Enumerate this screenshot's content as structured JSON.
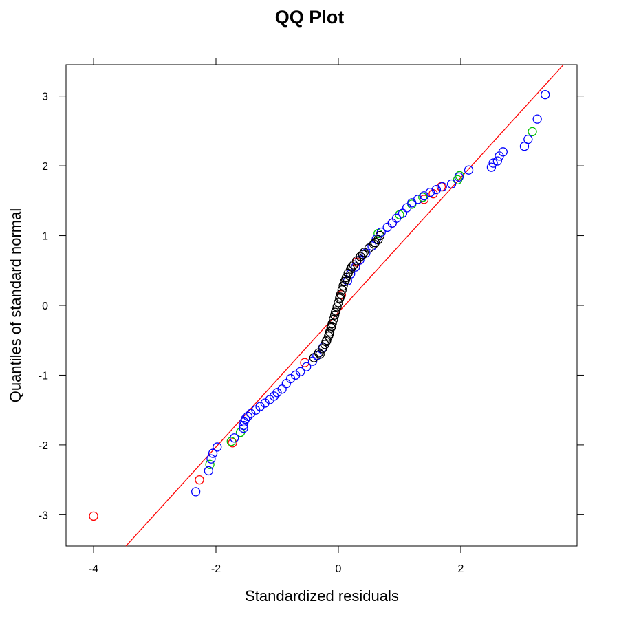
{
  "chart_data": {
    "type": "scatter",
    "title": "QQ Plot",
    "xlabel": "Standardized residuals",
    "ylabel": "Quantiles of standard normal",
    "xlim": [
      -4.45,
      3.9
    ],
    "ylim": [
      -3.45,
      3.45
    ],
    "x_ticks": [
      -4,
      -2,
      0,
      2
    ],
    "x_tick_labels": [
      "-4",
      "-2",
      "0",
      "2"
    ],
    "y_ticks": [
      -3,
      -2,
      -1,
      0,
      1,
      2,
      3
    ],
    "y_tick_labels": [
      "-3",
      "-2",
      "-1",
      "0",
      "1",
      "2",
      "3"
    ],
    "grid": false,
    "reference_line": {
      "intercept": -0.1,
      "slope": 0.965,
      "color": "#ff0000"
    },
    "colors": {
      "red": "#ff0000",
      "green": "#00c000",
      "blue": "#0000ff",
      "black": "#000000"
    },
    "series": [
      {
        "color": "red",
        "points": [
          [
            -4.0,
            -3.02
          ],
          [
            -2.27,
            -2.5
          ],
          [
            -1.73,
            -1.97
          ],
          [
            -0.55,
            -0.82
          ],
          [
            0.88,
            1.18
          ],
          [
            1.55,
            1.6
          ],
          [
            1.68,
            1.7
          ],
          [
            1.4,
            1.52
          ],
          [
            0.3,
            0.62
          ],
          [
            0.05,
            0.15
          ]
        ]
      },
      {
        "color": "green",
        "points": [
          [
            -2.1,
            -2.28
          ],
          [
            -1.6,
            -1.82
          ],
          [
            -1.75,
            -1.95
          ],
          [
            1.0,
            1.3
          ],
          [
            1.38,
            1.55
          ],
          [
            1.95,
            1.8
          ],
          [
            1.98,
            1.86
          ],
          [
            3.17,
            2.49
          ],
          [
            0.65,
            1.03
          ],
          [
            1.2,
            1.45
          ]
        ]
      },
      {
        "color": "blue",
        "points": [
          [
            -2.33,
            -2.67
          ],
          [
            -2.12,
            -2.37
          ],
          [
            -2.08,
            -2.2
          ],
          [
            -2.05,
            -2.12
          ],
          [
            -1.98,
            -2.03
          ],
          [
            -1.7,
            -1.9
          ],
          [
            -1.55,
            -1.76
          ],
          [
            -1.55,
            -1.72
          ],
          [
            -1.54,
            -1.67
          ],
          [
            -1.52,
            -1.63
          ],
          [
            -1.48,
            -1.59
          ],
          [
            -1.43,
            -1.55
          ],
          [
            -1.35,
            -1.5
          ],
          [
            -1.28,
            -1.45
          ],
          [
            -1.2,
            -1.4
          ],
          [
            -1.12,
            -1.35
          ],
          [
            -1.05,
            -1.3
          ],
          [
            -1.0,
            -1.25
          ],
          [
            -0.92,
            -1.2
          ],
          [
            -0.85,
            -1.12
          ],
          [
            -0.78,
            -1.05
          ],
          [
            -0.7,
            -1.0
          ],
          [
            -0.62,
            -0.95
          ],
          [
            -0.52,
            -0.88
          ],
          [
            -0.42,
            -0.8
          ],
          [
            -0.35,
            -0.72
          ],
          [
            -0.25,
            -0.6
          ],
          [
            0.15,
            0.35
          ],
          [
            0.2,
            0.45
          ],
          [
            0.28,
            0.55
          ],
          [
            0.35,
            0.65
          ],
          [
            0.45,
            0.75
          ],
          [
            0.55,
            0.85
          ],
          [
            0.62,
            0.95
          ],
          [
            0.7,
            1.05
          ],
          [
            0.8,
            1.12
          ],
          [
            0.88,
            1.18
          ],
          [
            0.95,
            1.25
          ],
          [
            1.05,
            1.32
          ],
          [
            1.12,
            1.4
          ],
          [
            1.2,
            1.47
          ],
          [
            1.3,
            1.52
          ],
          [
            1.4,
            1.57
          ],
          [
            1.5,
            1.62
          ],
          [
            1.6,
            1.66
          ],
          [
            1.7,
            1.7
          ],
          [
            1.85,
            1.74
          ],
          [
            1.97,
            1.84
          ],
          [
            2.13,
            1.94
          ],
          [
            2.5,
            1.98
          ],
          [
            2.53,
            2.04
          ],
          [
            2.6,
            2.07
          ],
          [
            2.63,
            2.14
          ],
          [
            2.69,
            2.2
          ],
          [
            3.04,
            2.28
          ],
          [
            3.1,
            2.38
          ],
          [
            3.25,
            2.67
          ],
          [
            3.38,
            3.02
          ]
        ]
      },
      {
        "color": "black",
        "points": [
          [
            -0.4,
            -0.75
          ],
          [
            -0.32,
            -0.68
          ],
          [
            -0.26,
            -0.62
          ],
          [
            -0.22,
            -0.56
          ],
          [
            -0.19,
            -0.5
          ],
          [
            -0.16,
            -0.44
          ],
          [
            -0.14,
            -0.38
          ],
          [
            -0.12,
            -0.32
          ],
          [
            -0.1,
            -0.26
          ],
          [
            -0.08,
            -0.2
          ],
          [
            -0.06,
            -0.14
          ],
          [
            -0.04,
            -0.08
          ],
          [
            -0.02,
            -0.02
          ],
          [
            0.0,
            0.04
          ],
          [
            0.02,
            0.1
          ],
          [
            0.04,
            0.16
          ],
          [
            0.06,
            0.22
          ],
          [
            0.08,
            0.28
          ],
          [
            0.1,
            0.34
          ],
          [
            0.13,
            0.4
          ],
          [
            0.16,
            0.46
          ],
          [
            0.2,
            0.52
          ],
          [
            0.25,
            0.58
          ],
          [
            0.3,
            0.64
          ],
          [
            0.36,
            0.7
          ],
          [
            0.42,
            0.76
          ],
          [
            0.5,
            0.82
          ],
          [
            0.58,
            0.88
          ],
          [
            0.65,
            0.94
          ],
          [
            0.68,
            1.0
          ],
          [
            -0.3,
            -0.7
          ],
          [
            -0.2,
            -0.52
          ],
          [
            -0.11,
            -0.3
          ],
          [
            -0.05,
            -0.1
          ],
          [
            0.03,
            0.12
          ],
          [
            0.12,
            0.37
          ],
          [
            0.22,
            0.55
          ],
          [
            0.4,
            0.73
          ],
          [
            0.6,
            0.9
          ],
          [
            -0.15,
            -0.41
          ]
        ]
      }
    ]
  }
}
